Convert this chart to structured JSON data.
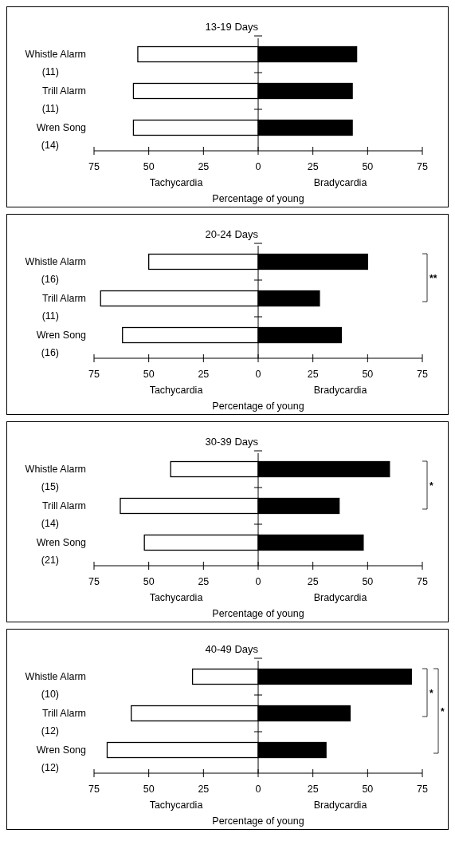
{
  "chart_data": [
    {
      "type": "bar",
      "orientation": "horizontal",
      "stacked": true,
      "title": "13-19 Days",
      "xlabel": "Percentage of young",
      "categories": [
        "Whistle Alarm\n(11)",
        "Trill Alarm\n(11)",
        "Wren Song\n(14)"
      ],
      "series": [
        {
          "color": "#ffffff",
          "values": [
            -55,
            -57,
            -57
          ]
        },
        {
          "color": "#000000",
          "values": [
            45,
            43,
            43
          ]
        }
      ],
      "xlim": [
        -75,
        75
      ],
      "xticks": [
        {
          "value": -75,
          "label": "75"
        },
        {
          "value": -50,
          "label": "50"
        },
        {
          "value": -25,
          "label": "25"
        },
        0,
        25,
        50,
        75
      ],
      "annotations": [
        "Tachycardia",
        "Bradycardia"
      ]
    },
    {
      "type": "bar",
      "orientation": "horizontal",
      "stacked": true,
      "title": "20-24 Days",
      "xlabel": "Percentage of young",
      "categories": [
        "Whistle Alarm\n(16)",
        "Trill Alarm\n(11)",
        "Wren Song\n(16)"
      ],
      "series": [
        {
          "color": "#ffffff",
          "values": [
            -50,
            -72,
            -62
          ]
        },
        {
          "color": "#000000",
          "values": [
            50,
            28,
            38
          ]
        }
      ],
      "xlim": [
        -75,
        75
      ],
      "xticks": [
        {
          "value": -75,
          "label": "75"
        },
        {
          "value": -50,
          "label": "50"
        },
        {
          "value": -25,
          "label": "25"
        },
        0,
        25,
        50,
        75
      ],
      "annotations": [
        "Tachycardia",
        "Bradycardia",
        "**"
      ]
    },
    {
      "type": "bar",
      "orientation": "horizontal",
      "stacked": true,
      "title": "30-39 Days",
      "xlabel": "Percentage of young",
      "categories": [
        "Whistle Alarm\n(15)",
        "Trill Alarm\n(14)",
        "Wren Song\n(21)"
      ],
      "series": [
        {
          "color": "#ffffff",
          "values": [
            -40,
            -63,
            -52
          ]
        },
        {
          "color": "#000000",
          "values": [
            60,
            37,
            48
          ]
        }
      ],
      "xlim": [
        -75,
        75
      ],
      "xticks": [
        {
          "value": -75,
          "label": "75"
        },
        {
          "value": -50,
          "label": "50"
        },
        {
          "value": -25,
          "label": "25"
        },
        0,
        25,
        50,
        75
      ],
      "annotations": [
        "Tachycardia",
        "Bradycardia",
        "*"
      ]
    },
    {
      "type": "bar",
      "orientation": "horizontal",
      "stacked": true,
      "title": "40-49 Days",
      "xlabel": "Percentage of young",
      "categories": [
        "Whistle Alarm\n(10)",
        "Trill Alarm\n(12)",
        "Wren Song\n(12)"
      ],
      "series": [
        {
          "color": "#ffffff",
          "values": [
            -30,
            -58,
            -69
          ]
        },
        {
          "color": "#000000",
          "values": [
            70,
            42,
            31
          ]
        }
      ],
      "xlim": [
        -75,
        75
      ],
      "xticks": [
        {
          "value": -75,
          "label": "75"
        },
        {
          "value": -50,
          "label": "50"
        },
        {
          "value": -25,
          "label": "25"
        },
        0,
        25,
        50,
        75
      ],
      "annotations": [
        "Tachycardia",
        "Bradycardia",
        "*",
        "*"
      ]
    }
  ]
}
